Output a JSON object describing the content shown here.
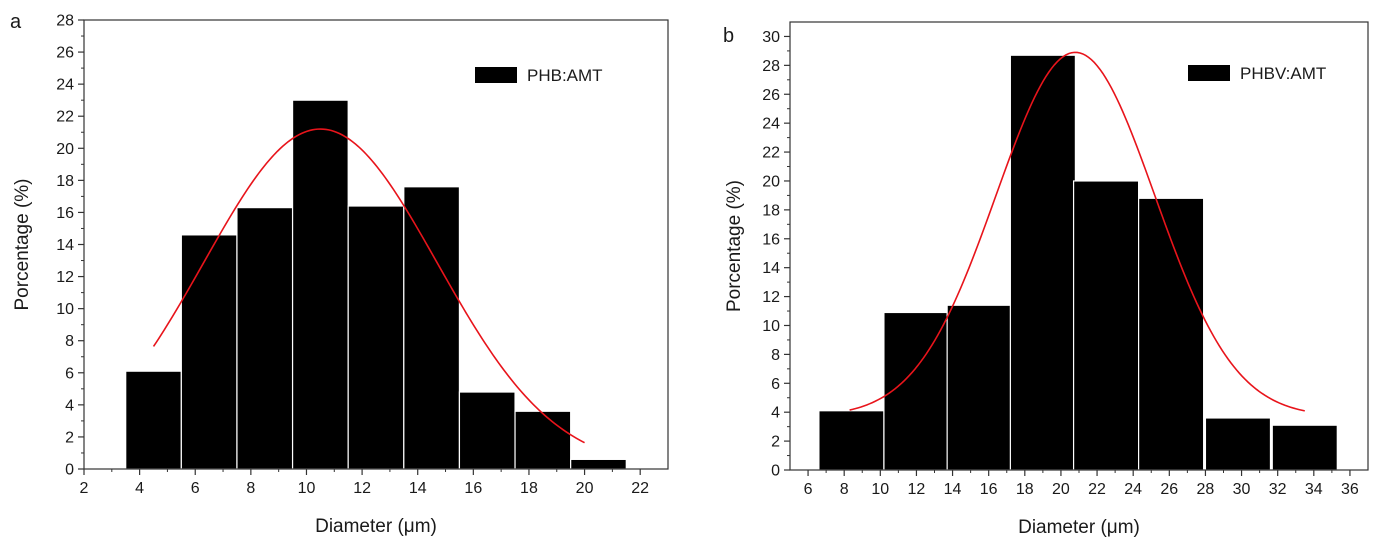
{
  "chart_data": [
    {
      "type": "bar",
      "panel_label": "a",
      "xlabel": "Diameter (μm)",
      "ylabel": "Porcentage (%)",
      "xlim": [
        2,
        23
      ],
      "ylim": [
        0,
        28
      ],
      "xticks": [
        2,
        4,
        6,
        8,
        10,
        12,
        14,
        16,
        18,
        20,
        22
      ],
      "yticks": [
        0,
        2,
        4,
        6,
        8,
        10,
        12,
        14,
        16,
        18,
        20,
        22,
        24,
        26,
        28
      ],
      "bin_width": 2,
      "series": [
        {
          "name": "PHB:AMT",
          "bin_centers": [
            4.5,
            6.5,
            8.5,
            10.5,
            12.5,
            14.5,
            16.5,
            18.5,
            20.5
          ],
          "values": [
            6.1,
            14.6,
            16.3,
            23.0,
            16.4,
            17.6,
            4.8,
            3.6,
            0.6
          ]
        }
      ],
      "fit_curve": {
        "type": "gaussian",
        "center": 10.5,
        "peak": 21.2,
        "sigma": 4.2,
        "x_range": [
          4.5,
          20
        ]
      },
      "legend": {
        "label": "PHB:AMT",
        "placement": "top-right"
      },
      "colors": {
        "bars": "#000000",
        "bar_edge": "#ffffff",
        "fit": "#e8141b"
      }
    },
    {
      "type": "bar",
      "panel_label": "b",
      "xlabel": "Diameter (μm)",
      "ylabel": "Porcentage (%)",
      "xlim": [
        5,
        37
      ],
      "ylim": [
        0,
        31
      ],
      "xticks": [
        6,
        8,
        10,
        12,
        14,
        16,
        18,
        20,
        22,
        24,
        26,
        28,
        30,
        32,
        34,
        36
      ],
      "yticks": [
        0,
        2,
        4,
        6,
        8,
        10,
        12,
        14,
        16,
        18,
        20,
        22,
        24,
        26,
        28,
        30
      ],
      "bin_width": 3.6,
      "series": [
        {
          "name": "PHBV:AMT",
          "bin_centers": [
            8.4,
            12.0,
            15.5,
            19.0,
            22.5,
            26.1,
            29.8,
            33.5
          ],
          "values": [
            4.1,
            10.9,
            11.4,
            28.7,
            20.0,
            18.8,
            3.6,
            3.1
          ]
        }
      ],
      "fit_curve": {
        "type": "gaussian",
        "center": 20.8,
        "peak": 28.9,
        "sigma": 4.4,
        "baseline": 3.7,
        "x_range": [
          8.3,
          33.5
        ]
      },
      "legend": {
        "label": "PHBV:AMT",
        "placement": "top-right"
      },
      "colors": {
        "bars": "#000000",
        "bar_edge": "#ffffff",
        "fit": "#e8141b"
      }
    }
  ]
}
